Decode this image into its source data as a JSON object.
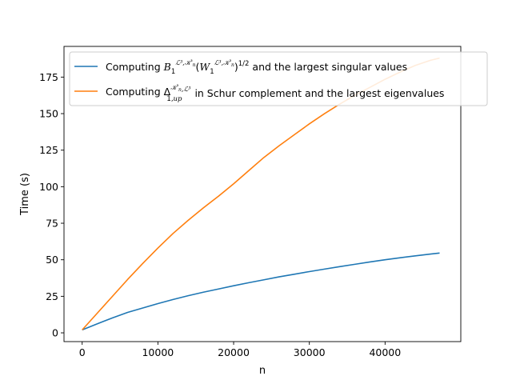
{
  "chart_data": {
    "type": "line",
    "xlabel": "n",
    "ylabel": "Time (s)",
    "xlim": [
      -2400,
      50000
    ],
    "ylim": [
      -6,
      196
    ],
    "xticks": [
      0,
      10000,
      20000,
      30000,
      40000
    ],
    "xtick_labels": [
      "0",
      "10000",
      "20000",
      "30000",
      "40000"
    ],
    "yticks": [
      0,
      25,
      50,
      75,
      100,
      125,
      150,
      175
    ],
    "ytick_labels": [
      "0",
      "25",
      "50",
      "75",
      "100",
      "125",
      "150",
      "175"
    ],
    "grid": false,
    "legend_position": "upper left",
    "series": [
      {
        "name_prefix": "Computing",
        "name_suffix": "and the largest singular values",
        "color": "#1f77b4",
        "x": [
          0,
          2000,
          4000,
          6000,
          8000,
          10000,
          12000,
          14000,
          16000,
          18000,
          20000,
          22000,
          24000,
          26000,
          28000,
          30000,
          32000,
          34000,
          36000,
          38000,
          40000,
          42000,
          44000,
          46000,
          47200
        ],
        "y": [
          2,
          6.2,
          10.2,
          14,
          17,
          20,
          22.8,
          25.4,
          27.8,
          30,
          32.2,
          34.3,
          36.3,
          38.3,
          40.1,
          41.9,
          43.6,
          45.3,
          46.9,
          48.5,
          50,
          51.4,
          52.7,
          53.9,
          54.6
        ]
      },
      {
        "name_prefix": "Computing",
        "name_suffix": "in Schur complement and the largest eigenvalues",
        "color": "#ff7f0e",
        "x": [
          0,
          2000,
          4000,
          6000,
          8000,
          10000,
          12000,
          14000,
          16000,
          18000,
          20000,
          22000,
          24000,
          26000,
          28000,
          30000,
          32000,
          34000,
          36000,
          38000,
          40000,
          42000,
          44000,
          46000,
          47200
        ],
        "y": [
          2,
          13.5,
          25,
          36.5,
          47.5,
          58,
          68,
          77,
          85.5,
          93.5,
          102,
          111,
          120,
          128,
          135.5,
          143,
          150,
          156.5,
          162.5,
          168,
          173.5,
          178.5,
          183,
          186.5,
          188
        ]
      }
    ]
  }
}
